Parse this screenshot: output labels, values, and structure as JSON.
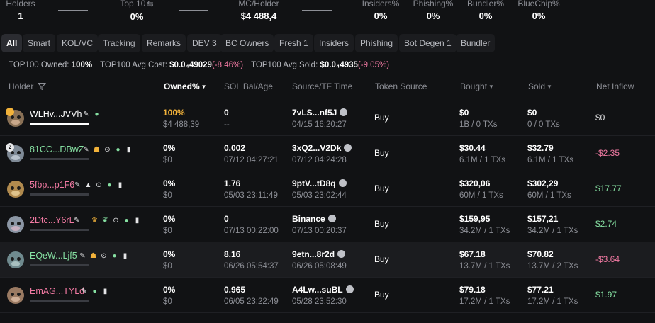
{
  "stats": {
    "holders": {
      "label": "Holders",
      "value": "1"
    },
    "top10": {
      "label": "Top 10",
      "value": "0%"
    },
    "mc_holder": {
      "label": "MC/Holder",
      "value": "$4 488,4"
    },
    "insiders": {
      "label": "Insiders%",
      "value": "0%"
    },
    "phishing": {
      "label": "Phishing%",
      "value": "0%"
    },
    "bundler": {
      "label": "Bundler%",
      "value": "0%"
    },
    "bluechip": {
      "label": "BlueChip%",
      "value": "0%"
    }
  },
  "tabs": [
    "All",
    "Smart",
    "KOL/VC",
    "Tracking",
    "Remarks",
    "DEV 3",
    "BC Owners",
    "Fresh 1",
    "Insiders",
    "Phishing",
    "Bot Degen 1",
    "Bundler"
  ],
  "summary": {
    "owned_label": "TOP100 Owned:",
    "owned_value": "100%",
    "avg_cost_label": "TOP100 Avg Cost:",
    "avg_cost_value": "$0.0₄49029",
    "avg_cost_change": "(-8.46%)",
    "avg_sold_label": "TOP100 Avg Sold:",
    "avg_sold_value": "$0.0₄4935",
    "avg_sold_change": "(-9.05%)"
  },
  "columns": {
    "holder": "Holder",
    "owned": "Owned%",
    "sol_bal": "SOL Bal/Age",
    "source": "Source/TF Time",
    "token_source": "Token Source",
    "bought": "Bought",
    "sold": "Sold",
    "net_inflow": "Net Inflow"
  },
  "rows": [
    {
      "name": "WLHv...JVVh",
      "owned": "100%",
      "owned_sub": "$4 488,39",
      "sol": "0",
      "age": "--",
      "src": "7vLS...nf5J",
      "src_time": "04/15 16:20:27",
      "token_source": "Buy",
      "bought": "$0",
      "bought_sub": "1B / 0 TXs",
      "sold": "$0",
      "sold_sub": "0 / 0 TXs",
      "net": "$0"
    },
    {
      "name": "81CC...DBwZ",
      "owned": "0%",
      "owned_sub": "$0",
      "sol": "0.002",
      "age": "07/12 04:27:21",
      "src": "3xQ2...V2Dk",
      "src_time": "07/12 04:24:28",
      "token_source": "Buy",
      "bought": "$30.44",
      "bought_sub": "6.1M / 1 TXs",
      "sold": "$32.79",
      "sold_sub": "6.1M / 1 TXs",
      "net": "-$2.35"
    },
    {
      "name": "5fbp...p1F6",
      "owned": "0%",
      "owned_sub": "$0",
      "sol": "1.76",
      "age": "05/03 23:11:49",
      "src": "9ptV...tD8q",
      "src_time": "05/03 23:02:44",
      "token_source": "Buy",
      "bought": "$320,06",
      "bought_sub": "60M / 1 TXs",
      "sold": "$302,29",
      "sold_sub": "60M / 1 TXs",
      "net": "$17.77"
    },
    {
      "name": "2Dtc...Y6rL",
      "owned": "0%",
      "owned_sub": "$0",
      "sol": "0",
      "age": "07/13 00:22:00",
      "src": "Binance",
      "src_time": "07/13 00:20:37",
      "token_source": "Buy",
      "bought": "$159,95",
      "bought_sub": "34.2M / 1 TXs",
      "sold": "$157,21",
      "sold_sub": "34.2M / 1 TXs",
      "net": "$2.74"
    },
    {
      "name": "EQeW...Ljf5",
      "owned": "0%",
      "owned_sub": "$0",
      "sol": "8.16",
      "age": "06/26 05:54:37",
      "src": "9etn...8r2d",
      "src_time": "06/26 05:08:49",
      "token_source": "Buy",
      "bought": "$67.18",
      "bought_sub": "13.7M / 1 TXs",
      "sold": "$70.82",
      "sold_sub": "13.7M / 2 TXs",
      "net": "-$3.64"
    },
    {
      "name": "EmAG...TYLd",
      "owned": "0%",
      "owned_sub": "$0",
      "sol": "0.965",
      "age": "06/05 23:22:49",
      "src": "A4Lw...suBL",
      "src_time": "05/28 23:52:30",
      "token_source": "Buy",
      "bought": "$79.18",
      "bought_sub": "17.2M / 1 TXs",
      "sold": "$77.21",
      "sold_sub": "17.2M / 1 TXs",
      "net": "$1.97"
    }
  ],
  "icons": {
    "filter": "filter-icon",
    "swap": "swap-icon",
    "edit": "pencil-icon",
    "user": "user-icon",
    "group": "group-icon",
    "target": "target-icon",
    "wallet": "wallet-icon",
    "source": "exchange-icon"
  },
  "colors": {
    "green": "#86e0a2",
    "pink": "#f27aa3",
    "gold": "#f2b23a"
  }
}
